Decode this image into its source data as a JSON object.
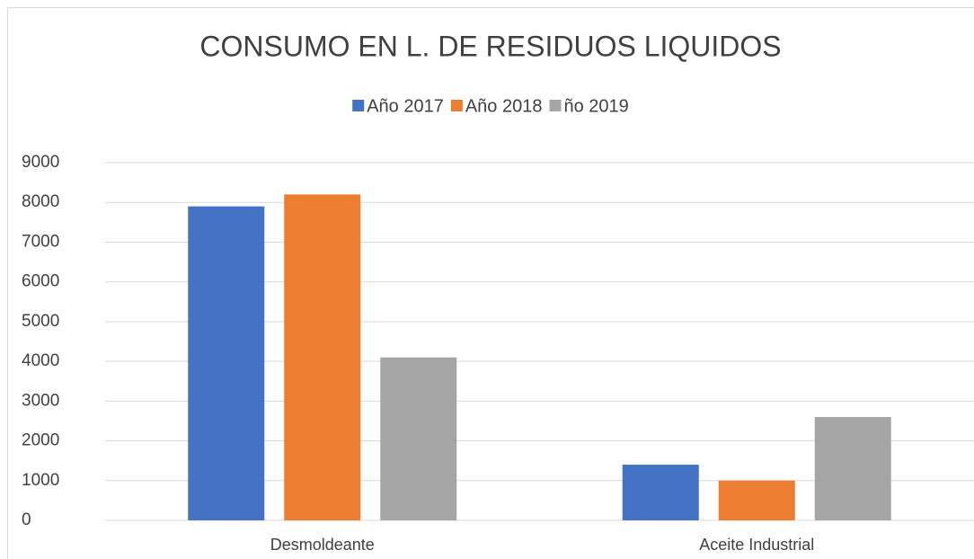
{
  "chart_data": {
    "type": "bar",
    "title": "CONSUMO EN L. DE RESIDUOS LIQUIDOS",
    "categories": [
      "Desmoldeante",
      "Aceite Industrial"
    ],
    "series": [
      {
        "name": "Año 2017",
        "color": "#4472c4",
        "values": [
          7900,
          1400
        ]
      },
      {
        "name": "Año 2018",
        "color": "#ed7d31",
        "values": [
          8200,
          1000
        ]
      },
      {
        "name": "ño 2019",
        "color": "#a5a5a5",
        "values": [
          4100,
          2600
        ]
      }
    ],
    "ylim": [
      0,
      9000
    ],
    "yticks": [
      0,
      1000,
      2000,
      3000,
      4000,
      5000,
      6000,
      7000,
      8000,
      9000
    ],
    "grid": true,
    "legend": "top"
  }
}
